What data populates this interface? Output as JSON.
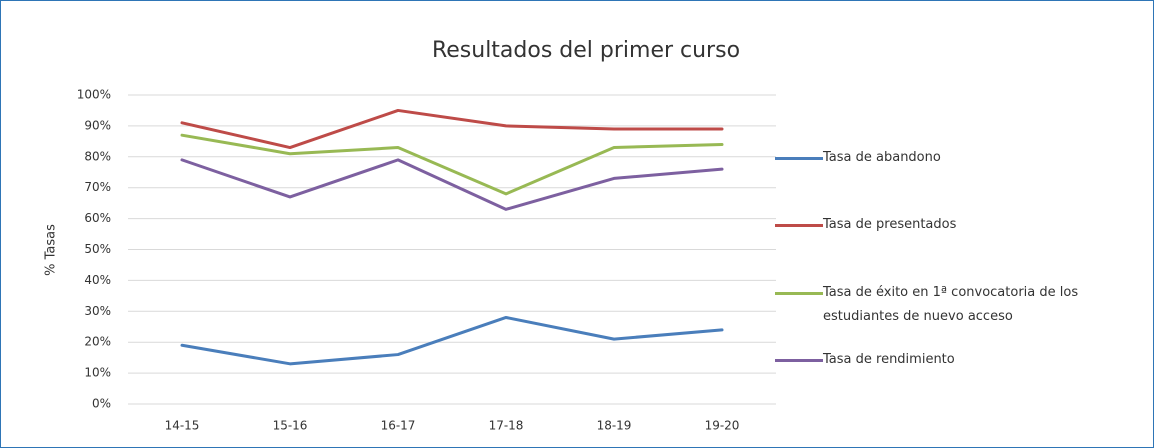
{
  "chart_data": {
    "type": "line",
    "title": "Resultados del primer curso",
    "y_label": "% Tasas",
    "categories": [
      "14-15",
      "15-16",
      "16-17",
      "17-18",
      "18-19",
      "19-20"
    ],
    "series": [
      {
        "name": "Tasa de abandono",
        "color": "#4a7ebb",
        "values": [
          19,
          13,
          16,
          28,
          21,
          24
        ]
      },
      {
        "name": "Tasa de presentados",
        "color": "#be4b48",
        "values": [
          91,
          83,
          95,
          90,
          89,
          89
        ]
      },
      {
        "name": "Tasa de éxito en 1ª convocatoria de los estudiantes de nuevo acceso",
        "color": "#98b954",
        "values": [
          87,
          81,
          83,
          68,
          83,
          84
        ]
      },
      {
        "name": "Tasa de rendimiento",
        "color": "#7d60a0",
        "values": [
          79,
          67,
          79,
          63,
          73,
          76
        ]
      }
    ],
    "ylim": [
      0,
      100
    ],
    "yticks": [
      {
        "value": 0,
        "label": "0%"
      },
      {
        "value": 10,
        "label": "10%"
      },
      {
        "value": 20,
        "label": "20%"
      },
      {
        "value": 30,
        "label": "30%"
      },
      {
        "value": 40,
        "label": "40%"
      },
      {
        "value": 50,
        "label": "50%"
      },
      {
        "value": 60,
        "label": "60%"
      },
      {
        "value": 70,
        "label": "70%"
      },
      {
        "value": 80,
        "label": "80%"
      },
      {
        "value": 90,
        "label": "90%"
      },
      {
        "value": 100,
        "label": "100%"
      }
    ],
    "grid": true,
    "legend": "right"
  }
}
